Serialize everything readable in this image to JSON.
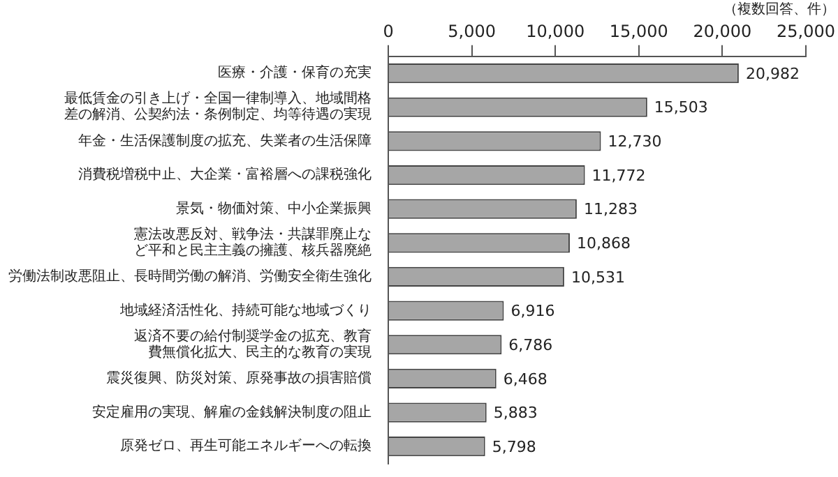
{
  "chart_data": {
    "type": "bar",
    "orientation": "horizontal",
    "categories": [
      "医療・介護・保育の充実",
      "最低賃金の引き上げ・全国一律制導入、地域間格差の解消、公契約法・条例制定、均等待遇の実現",
      "年金・生活保護制度の拡充、失業者の生活保障",
      "消費税増税中止、大企業・富裕層への課税強化",
      "景気・物価対策、中小企業振興",
      "憲法改悪反対、戦争法・共謀罪廃止など平和と民主主義の擁護、核兵器廃絶",
      "労働法制改悪阻止、長時間労働の解消、労働安全衛生強化",
      "地域経済活性化、持続可能な地域づくり",
      "返済不要の給付制奨学金の拡充、教育費無償化拡大、民主的な教育の実現",
      "震災復興、防災対策、原発事故の損害賠償",
      "安定雇用の実現、解雇の金銭解決制度の阻止",
      "原発ゼロ、再生可能エネルギーへの転換"
    ],
    "values": [
      20982,
      15503,
      12730,
      11772,
      11283,
      10868,
      10531,
      6916,
      6786,
      6468,
      5883,
      5798
    ],
    "value_labels": [
      "20,982",
      "15,503",
      "12,730",
      "11,772",
      "11,283",
      "10,868",
      "10,531",
      "6,916",
      "6,786",
      "6,468",
      "5,883",
      "5,798"
    ],
    "color": "#a6a6a6",
    "xlim": [
      0,
      25000
    ],
    "xticks": [
      {
        "value": 0,
        "label": "0"
      },
      {
        "value": 5000,
        "label": "5,000"
      },
      {
        "value": 10000,
        "label": "10,000"
      },
      {
        "value": 15000,
        "label": "15,000"
      },
      {
        "value": 20000,
        "label": "20,000"
      },
      {
        "value": 25000,
        "label": "25,000"
      }
    ],
    "annotations": [
      "（複数回答、件）"
    ],
    "grid": false,
    "legend": false
  }
}
